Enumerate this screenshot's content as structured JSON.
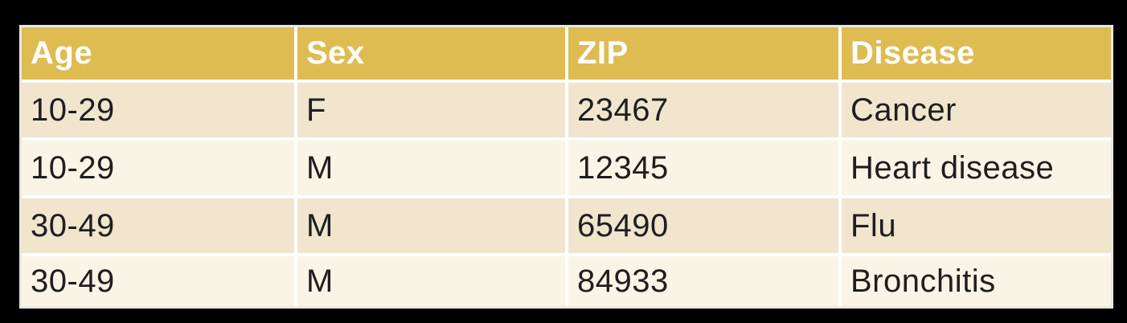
{
  "chart_data": {
    "type": "table",
    "title": "",
    "columns": [
      "Age",
      "Sex",
      "ZIP",
      "Disease"
    ],
    "rows": [
      [
        "10-29",
        "F",
        "23467",
        "Cancer"
      ],
      [
        "10-29",
        "M",
        "12345",
        "Heart disease"
      ],
      [
        "30-49",
        "M",
        "65490",
        "Flu"
      ],
      [
        "30-49",
        "M",
        "84933",
        "Bronchitis"
      ]
    ]
  },
  "styles": {
    "header_background": "#DFBC52",
    "header_text_color": "#FFFFFF",
    "row_odd_background": "#F1E5CE",
    "row_even_background": "#FAF4E6",
    "body_text_color": "#1E1E1E",
    "divider_color": "#FFFFFF",
    "outer_border_color": "#E9E7E2",
    "canvas_background": "#000000"
  }
}
